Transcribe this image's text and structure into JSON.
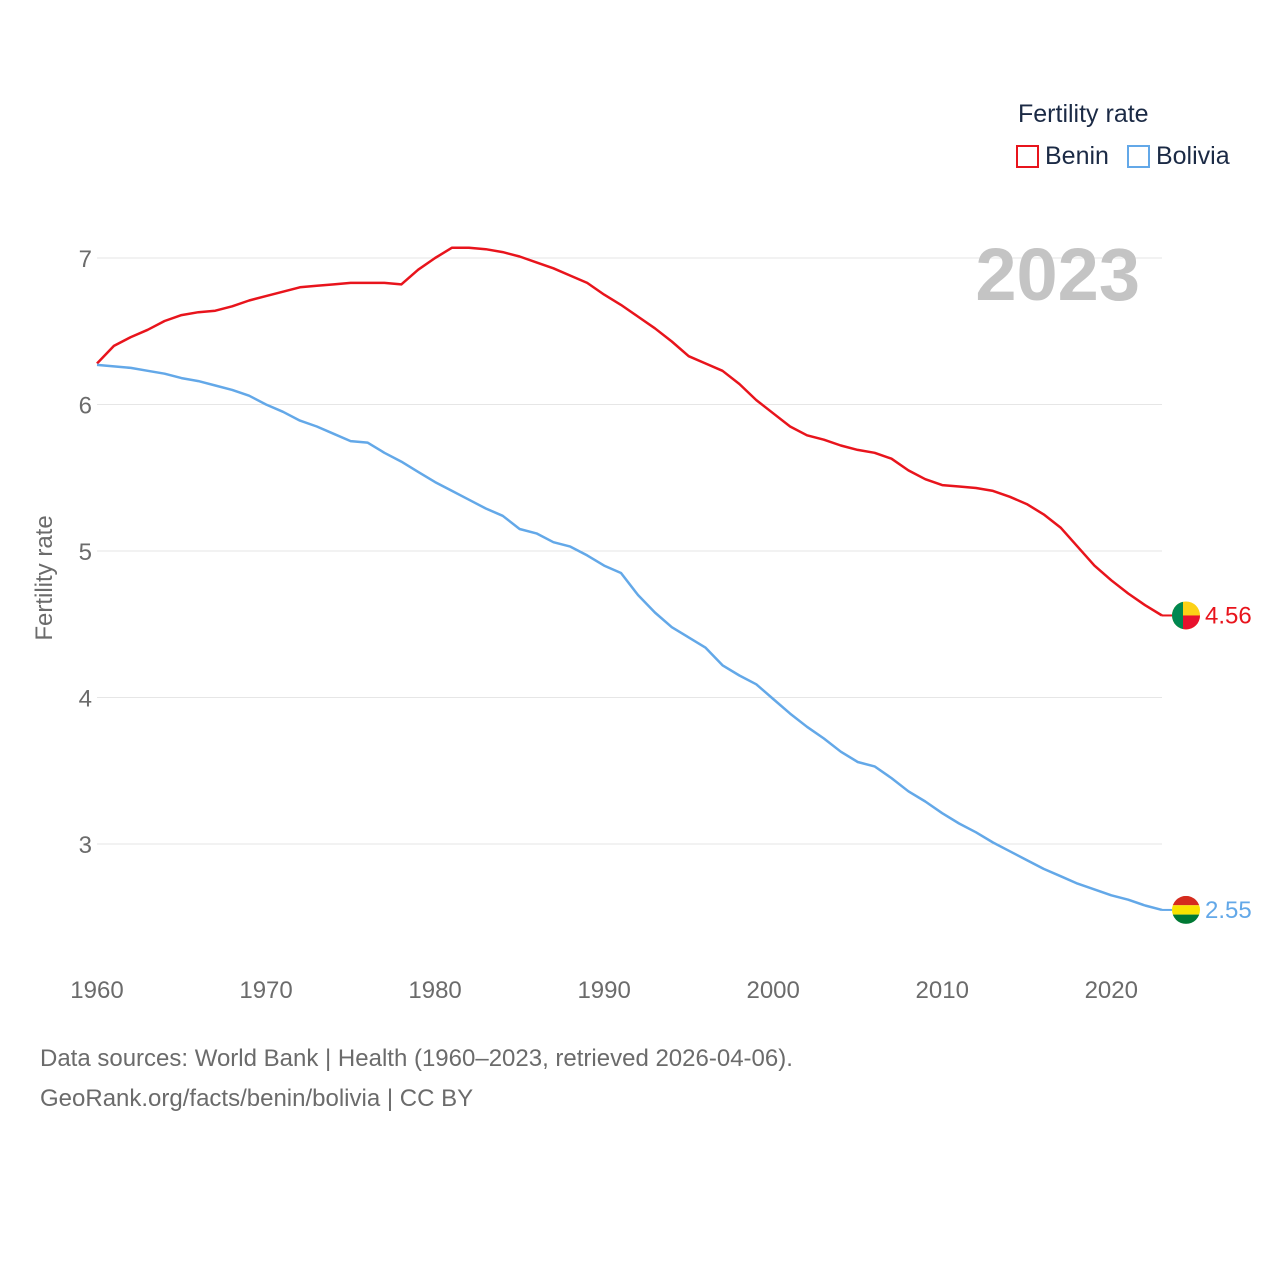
{
  "legend": {
    "title": "Fertility rate",
    "benin_label": "Benin",
    "bolivia_label": "Bolivia"
  },
  "year_overlay": "2023",
  "source_line1": "Data sources: World Bank | Health (1960–2023, retrieved 2026-04-06).",
  "source_line2": "GeoRank.org/facts/benin/bolivia | CC BY",
  "colors": {
    "benin": "#e8141c",
    "bolivia": "#63a8e8",
    "grid": "#e6e6e6",
    "axis_text": "#6b6b6b",
    "year_overlay": "#c4c4c4"
  },
  "chart_data": {
    "type": "line",
    "title": "",
    "xlabel": "",
    "ylabel": "Fertility rate",
    "xlim": [
      1960,
      2023
    ],
    "ylim": [
      2.4,
      7.4
    ],
    "x_ticks": [
      1960,
      1970,
      1980,
      1990,
      2000,
      2010,
      2020
    ],
    "y_ticks": [
      3,
      4,
      5,
      6,
      7
    ],
    "x": [
      1960,
      1961,
      1962,
      1963,
      1964,
      1965,
      1966,
      1967,
      1968,
      1969,
      1970,
      1971,
      1972,
      1973,
      1974,
      1975,
      1976,
      1977,
      1978,
      1979,
      1980,
      1981,
      1982,
      1983,
      1984,
      1985,
      1986,
      1987,
      1988,
      1989,
      1990,
      1991,
      1992,
      1993,
      1994,
      1995,
      1996,
      1997,
      1998,
      1999,
      2000,
      2001,
      2002,
      2003,
      2004,
      2005,
      2006,
      2007,
      2008,
      2009,
      2010,
      2011,
      2012,
      2013,
      2014,
      2015,
      2016,
      2017,
      2018,
      2019,
      2020,
      2021,
      2022,
      2023
    ],
    "series": [
      {
        "name": "Benin",
        "end_label": "4.56",
        "values": [
          6.28,
          6.4,
          6.46,
          6.51,
          6.57,
          6.61,
          6.63,
          6.64,
          6.67,
          6.71,
          6.74,
          6.77,
          6.8,
          6.81,
          6.82,
          6.83,
          6.83,
          6.83,
          6.82,
          6.92,
          7.0,
          7.07,
          7.07,
          7.06,
          7.04,
          7.01,
          6.97,
          6.93,
          6.88,
          6.83,
          6.75,
          6.68,
          6.6,
          6.52,
          6.43,
          6.33,
          6.28,
          6.23,
          6.14,
          6.03,
          5.94,
          5.85,
          5.79,
          5.76,
          5.72,
          5.69,
          5.67,
          5.63,
          5.55,
          5.49,
          5.45,
          5.44,
          5.43,
          5.41,
          5.37,
          5.32,
          5.25,
          5.16,
          5.03,
          4.9,
          4.8,
          4.71,
          4.63,
          4.56
        ]
      },
      {
        "name": "Bolivia",
        "end_label": "2.55",
        "values": [
          6.27,
          6.26,
          6.25,
          6.23,
          6.21,
          6.18,
          6.16,
          6.13,
          6.1,
          6.06,
          6.0,
          5.95,
          5.89,
          5.85,
          5.8,
          5.75,
          5.74,
          5.67,
          5.61,
          5.54,
          5.47,
          5.41,
          5.35,
          5.29,
          5.24,
          5.15,
          5.12,
          5.06,
          5.03,
          4.97,
          4.9,
          4.85,
          4.7,
          4.58,
          4.48,
          4.41,
          4.34,
          4.22,
          4.15,
          4.09,
          3.99,
          3.89,
          3.8,
          3.72,
          3.63,
          3.56,
          3.53,
          3.45,
          3.36,
          3.29,
          3.21,
          3.14,
          3.08,
          3.01,
          2.95,
          2.89,
          2.83,
          2.78,
          2.73,
          2.69,
          2.65,
          2.62,
          2.58,
          2.55
        ]
      }
    ]
  }
}
